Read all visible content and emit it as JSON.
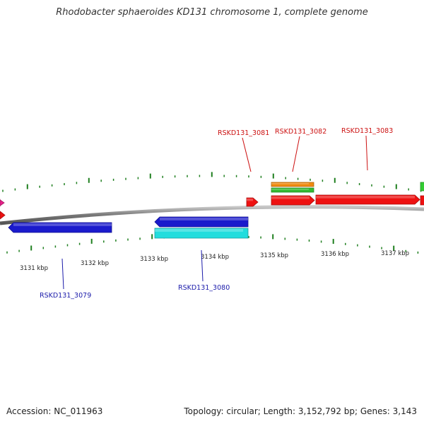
{
  "title": "Rhodobacter sphaeroides KD131 chromosome 1, complete genome",
  "footer": {
    "accession": "Accession: NC_011963",
    "summary": "Topology: circular; Length: 3,152,792 bp; Genes: 3,143"
  },
  "colors": {
    "backbone": "#8a8a8a",
    "tick": "#1f7f1f",
    "plus_label": "#cc1111",
    "minus_label": "#1a1aaa"
  },
  "scale_labels": [
    "3131 kbp",
    "3132 kbp",
    "3133 kbp",
    "3134 kbp",
    "3135 kbp",
    "3136 kbp",
    "3137 kbp"
  ],
  "gene_labels": {
    "above": [
      "RSKD131_3081",
      "RSKD131_3082",
      "RSKD131_3083"
    ],
    "below": [
      "RSKD131_3079",
      "RSKD131_3080"
    ]
  },
  "features": [
    {
      "id": "magenta-stub",
      "color": "#e8208a",
      "strand": "+"
    },
    {
      "id": "red-stub-left",
      "color": "#ee1111",
      "strand": "+"
    },
    {
      "id": "red-small",
      "color": "#ee1111",
      "strand": "+"
    },
    {
      "id": "orange-bar",
      "color": "#f08a10",
      "strand": "+"
    },
    {
      "id": "green-bar",
      "color": "#33bb33",
      "strand": "+"
    },
    {
      "id": "red-gene-3082",
      "color": "#ee1111",
      "strand": "+"
    },
    {
      "id": "red-gene-3083",
      "color": "#ee1111",
      "strand": "+"
    },
    {
      "id": "red-stub-right",
      "color": "#ee1111",
      "strand": "+"
    },
    {
      "id": "green-stub-right",
      "color": "#33cc33",
      "strand": "+"
    },
    {
      "id": "blue-gene-3079",
      "color": "#1a1acc",
      "strand": "-"
    },
    {
      "id": "blue-gene-3080",
      "color": "#1a1acc",
      "strand": "-"
    },
    {
      "id": "cyan-gene-3080",
      "color": "#22dddd",
      "strand": "-"
    }
  ]
}
